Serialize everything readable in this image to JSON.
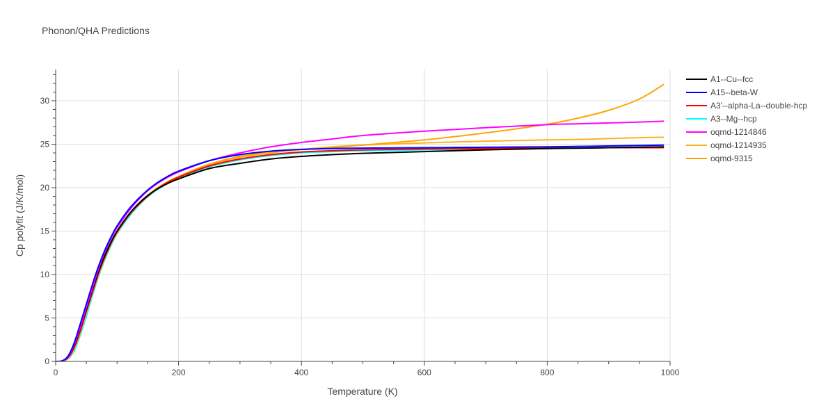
{
  "chart_data": {
    "type": "line",
    "title": "Phonon/QHA Predictions",
    "xlabel": "Temperature (K)",
    "ylabel": "Cp polyfit (J/K/mol)",
    "xlim": [
      0,
      1000
    ],
    "ylim": [
      0,
      33.6
    ],
    "xticks": [
      0,
      200,
      400,
      600,
      800,
      1000
    ],
    "yticks": [
      0,
      5,
      10,
      15,
      20,
      25,
      30
    ],
    "grid": true,
    "legend_position": "top-right",
    "x": [
      0,
      10,
      20,
      30,
      40,
      50,
      60,
      70,
      80,
      90,
      100,
      120,
      140,
      160,
      180,
      200,
      250,
      300,
      350,
      400,
      450,
      500,
      600,
      700,
      800,
      850,
      900,
      950,
      990
    ],
    "series": [
      {
        "name": "A1--Cu--fcc",
        "color": "#000000",
        "values": [
          0,
          0.05,
          0.5,
          1.8,
          3.8,
          6.0,
          8.3,
          10.4,
          12.2,
          13.7,
          15.0,
          17.0,
          18.5,
          19.6,
          20.4,
          21.0,
          22.2,
          22.8,
          23.3,
          23.6,
          23.8,
          23.95,
          24.15,
          24.35,
          24.5,
          24.55,
          24.6,
          24.65,
          24.7
        ]
      },
      {
        "name": "A15--beta-W",
        "color": "#0000ff",
        "values": [
          0,
          0.05,
          0.6,
          2.1,
          4.3,
          6.6,
          8.9,
          11.0,
          12.8,
          14.3,
          15.6,
          17.6,
          19.1,
          20.3,
          21.2,
          21.9,
          23.1,
          23.8,
          24.2,
          24.4,
          24.5,
          24.55,
          24.6,
          24.65,
          24.7,
          24.75,
          24.8,
          24.85,
          24.9
        ]
      },
      {
        "name": "A3'--alpha-La--double-hcp",
        "color": "#ff0000",
        "values": [
          0,
          0.03,
          0.4,
          1.6,
          3.5,
          5.8,
          8.0,
          10.2,
          12.0,
          13.6,
          14.9,
          16.9,
          18.4,
          19.6,
          20.5,
          21.2,
          22.5,
          23.3,
          23.8,
          24.1,
          24.25,
          24.35,
          24.45,
          24.5,
          24.55,
          24.55,
          24.6,
          24.6,
          24.6
        ]
      },
      {
        "name": "A3--Mg--hcp",
        "color": "#00ffff",
        "values": [
          0,
          0.02,
          0.3,
          1.2,
          3.0,
          5.2,
          7.6,
          9.8,
          11.7,
          13.3,
          14.7,
          16.7,
          18.3,
          19.5,
          20.4,
          21.1,
          22.4,
          23.2,
          23.7,
          24.0,
          24.15,
          24.25,
          24.35,
          24.45,
          24.5,
          24.55,
          24.6,
          24.65,
          24.7
        ]
      },
      {
        "name": "oqmd-1214846",
        "color": "#ff00ff",
        "values": [
          0,
          0.04,
          0.5,
          1.9,
          3.9,
          6.2,
          8.5,
          10.7,
          12.6,
          14.1,
          15.4,
          17.4,
          19.0,
          20.2,
          21.1,
          21.8,
          23.1,
          24.0,
          24.7,
          25.2,
          25.6,
          26.0,
          26.5,
          26.9,
          27.25,
          27.35,
          27.45,
          27.55,
          27.65
        ]
      },
      {
        "name": "oqmd-1214935",
        "color": "#ffb020",
        "values": [
          0,
          0.03,
          0.35,
          1.4,
          3.3,
          5.6,
          7.9,
          10.0,
          11.9,
          13.5,
          14.8,
          16.9,
          18.4,
          19.6,
          20.5,
          21.2,
          22.6,
          23.5,
          24.0,
          24.4,
          24.7,
          24.9,
          25.15,
          25.35,
          25.5,
          25.55,
          25.65,
          25.75,
          25.8
        ]
      },
      {
        "name": "oqmd-9315",
        "color": "#ffa500",
        "values": [
          0,
          0.03,
          0.4,
          1.5,
          3.4,
          5.7,
          8.0,
          10.1,
          12.0,
          13.6,
          14.9,
          16.9,
          18.5,
          19.7,
          20.6,
          21.3,
          22.7,
          23.6,
          24.1,
          24.4,
          24.6,
          24.9,
          25.5,
          26.3,
          27.3,
          28.0,
          28.9,
          30.2,
          31.9
        ]
      }
    ]
  }
}
